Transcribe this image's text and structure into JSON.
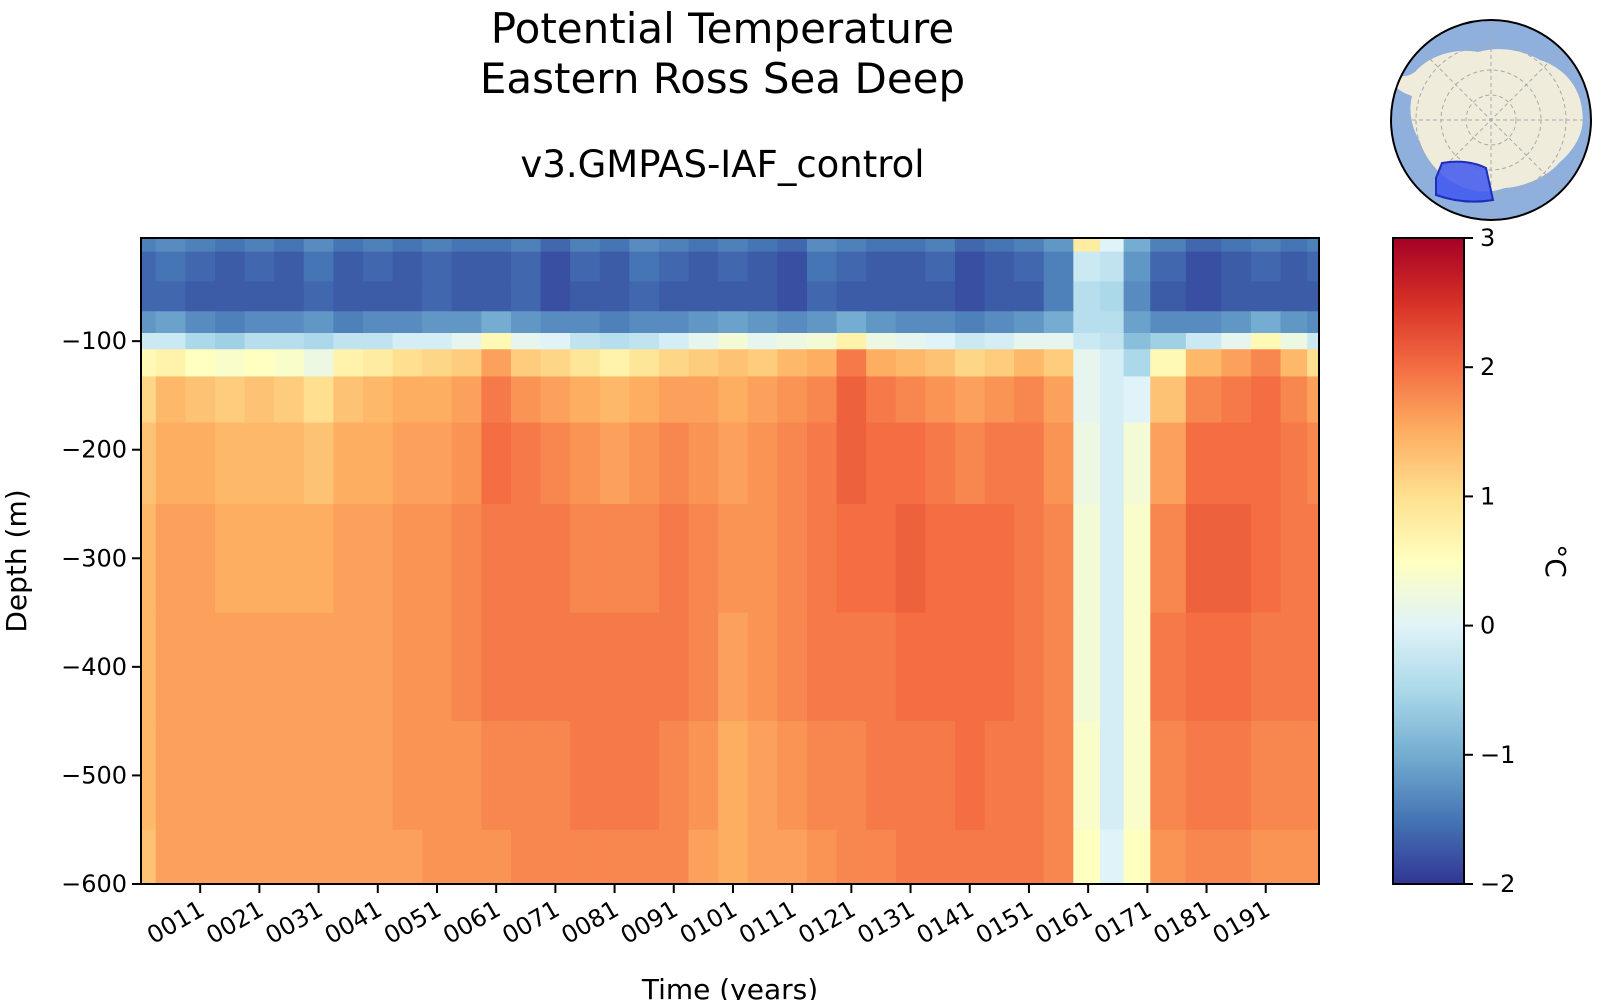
{
  "title": "Potential Temperature",
  "region": "Eastern Ross Sea Deep",
  "subtitle": "v3.GMPAS-IAF_control",
  "chart_data": {
    "type": "heatmap",
    "xlabel": "Time (years)",
    "ylabel": "Depth (m)",
    "colorbar_label": "°C",
    "colormap": "RdYlBu_r",
    "clim": [
      -2,
      3
    ],
    "xlim": [
      1,
      200
    ],
    "ylim": [
      -600,
      -5
    ],
    "x_ticks": [
      "0011",
      "0021",
      "0031",
      "0041",
      "0051",
      "0061",
      "0071",
      "0081",
      "0091",
      "0101",
      "0111",
      "0121",
      "0131",
      "0141",
      "0151",
      "0161",
      "0171",
      "0181",
      "0191"
    ],
    "y_ticks": [
      -100,
      -200,
      -300,
      -400,
      -500,
      -600
    ],
    "colorbar_ticks": [
      3,
      2,
      1,
      0,
      -1,
      -2
    ],
    "depth_levels": [
      -5,
      -30,
      -60,
      -85,
      -100,
      -115,
      -150,
      -200,
      -300,
      -400,
      -500,
      -600
    ],
    "time_years": [
      1,
      6,
      11,
      16,
      21,
      26,
      31,
      36,
      41,
      46,
      51,
      56,
      61,
      66,
      71,
      76,
      81,
      86,
      91,
      96,
      101,
      106,
      111,
      116,
      121,
      126,
      131,
      136,
      141,
      146,
      151,
      156,
      161,
      165,
      169,
      174,
      181,
      186,
      191,
      196,
      200
    ],
    "temperature": [
      [
        -1.4,
        -1.3,
        -1.4,
        -1.5,
        -1.4,
        -1.5,
        -1.3,
        -1.5,
        -1.4,
        -1.5,
        -1.4,
        -1.5,
        -1.5,
        -1.4,
        -1.6,
        -1.4,
        -1.5,
        -1.3,
        -1.4,
        -1.5,
        -1.4,
        -1.5,
        -1.6,
        -1.3,
        -1.4,
        -1.5,
        -1.5,
        -1.4,
        -1.6,
        -1.5,
        -1.4,
        -1.2,
        0.8,
        0.0,
        -1.0,
        -1.4,
        -1.6,
        -1.5,
        -1.4,
        -1.5,
        -1.4
      ],
      [
        -1.6,
        -1.5,
        -1.6,
        -1.7,
        -1.6,
        -1.7,
        -1.5,
        -1.7,
        -1.6,
        -1.7,
        -1.6,
        -1.7,
        -1.7,
        -1.6,
        -1.8,
        -1.6,
        -1.7,
        -1.5,
        -1.6,
        -1.7,
        -1.6,
        -1.7,
        -1.8,
        -1.5,
        -1.6,
        -1.7,
        -1.7,
        -1.6,
        -1.8,
        -1.7,
        -1.6,
        -1.4,
        -0.2,
        -0.3,
        -1.2,
        -1.6,
        -1.8,
        -1.7,
        -1.6,
        -1.7,
        -1.6
      ],
      [
        -1.6,
        -1.6,
        -1.7,
        -1.7,
        -1.7,
        -1.7,
        -1.6,
        -1.7,
        -1.7,
        -1.7,
        -1.6,
        -1.7,
        -1.7,
        -1.6,
        -1.8,
        -1.7,
        -1.7,
        -1.6,
        -1.7,
        -1.7,
        -1.7,
        -1.7,
        -1.8,
        -1.6,
        -1.7,
        -1.7,
        -1.7,
        -1.7,
        -1.8,
        -1.7,
        -1.7,
        -1.4,
        -0.4,
        -0.5,
        -1.3,
        -1.7,
        -1.8,
        -1.7,
        -1.7,
        -1.7,
        -1.7
      ],
      [
        -1.2,
        -1.1,
        -1.3,
        -1.4,
        -1.3,
        -1.3,
        -1.2,
        -1.4,
        -1.3,
        -1.3,
        -1.2,
        -1.2,
        -1.0,
        -1.2,
        -1.3,
        -1.3,
        -1.4,
        -1.3,
        -1.3,
        -1.2,
        -1.1,
        -1.2,
        -1.3,
        -1.2,
        -1.0,
        -1.2,
        -1.3,
        -1.3,
        -1.4,
        -1.3,
        -1.2,
        -1.0,
        -0.4,
        -0.4,
        -1.1,
        -1.3,
        -1.3,
        -1.2,
        -1.0,
        -1.2,
        -1.3
      ],
      [
        -0.2,
        -0.2,
        -0.5,
        -0.6,
        -0.4,
        -0.4,
        -0.5,
        -0.3,
        -0.3,
        -0.1,
        -0.1,
        0.1,
        0.6,
        0.1,
        0.0,
        -0.3,
        -0.4,
        -0.3,
        -0.1,
        0.1,
        0.3,
        0.1,
        0.2,
        0.3,
        0.7,
        0.2,
        0.1,
        0.0,
        -0.2,
        -0.1,
        0.1,
        0.1,
        -0.2,
        -0.3,
        -0.8,
        -0.6,
        -0.2,
        0.1,
        0.6,
        0.2,
        -0.2
      ],
      [
        0.6,
        0.7,
        0.5,
        0.4,
        0.5,
        0.4,
        0.2,
        0.7,
        0.8,
        1.0,
        1.1,
        1.2,
        1.6,
        1.2,
        1.1,
        0.9,
        0.7,
        0.9,
        1.1,
        1.2,
        1.3,
        1.2,
        1.4,
        1.5,
        1.9,
        1.5,
        1.4,
        1.3,
        1.1,
        1.2,
        1.4,
        1.2,
        0.1,
        -0.1,
        -0.5,
        0.6,
        1.4,
        1.6,
        1.8,
        1.4,
        1.0
      ],
      [
        1.1,
        1.4,
        1.3,
        1.2,
        1.3,
        1.2,
        1.0,
        1.3,
        1.4,
        1.5,
        1.5,
        1.6,
        1.9,
        1.7,
        1.6,
        1.5,
        1.4,
        1.5,
        1.6,
        1.6,
        1.5,
        1.6,
        1.7,
        1.8,
        2.1,
        1.9,
        1.8,
        1.7,
        1.6,
        1.7,
        1.8,
        1.6,
        0.1,
        -0.1,
        0.0,
        1.3,
        1.8,
        1.9,
        2.0,
        1.8,
        1.6
      ],
      [
        1.3,
        1.5,
        1.5,
        1.4,
        1.4,
        1.4,
        1.3,
        1.5,
        1.5,
        1.6,
        1.6,
        1.7,
        2.0,
        1.9,
        1.8,
        1.7,
        1.6,
        1.7,
        1.8,
        1.7,
        1.6,
        1.7,
        1.8,
        1.9,
        2.1,
        2.0,
        2.0,
        1.9,
        1.8,
        1.9,
        1.9,
        1.7,
        0.2,
        -0.1,
        0.3,
        1.6,
        2.0,
        2.0,
        2.0,
        1.9,
        1.8
      ],
      [
        1.4,
        1.6,
        1.6,
        1.5,
        1.5,
        1.5,
        1.5,
        1.6,
        1.6,
        1.7,
        1.7,
        1.8,
        1.9,
        1.9,
        1.9,
        1.8,
        1.8,
        1.8,
        1.9,
        1.8,
        1.7,
        1.7,
        1.8,
        1.9,
        2.0,
        2.0,
        2.1,
        2.0,
        2.0,
        2.0,
        1.9,
        1.8,
        0.3,
        -0.1,
        0.4,
        1.8,
        2.1,
        2.1,
        2.0,
        1.9,
        1.9
      ],
      [
        1.4,
        1.6,
        1.6,
        1.6,
        1.6,
        1.6,
        1.6,
        1.6,
        1.6,
        1.7,
        1.7,
        1.8,
        1.9,
        1.9,
        1.9,
        1.9,
        1.9,
        1.9,
        1.9,
        1.8,
        1.6,
        1.7,
        1.8,
        1.9,
        1.9,
        1.9,
        2.0,
        2.0,
        2.0,
        2.0,
        1.9,
        1.8,
        0.3,
        -0.1,
        0.4,
        1.9,
        2.0,
        2.0,
        1.9,
        1.9,
        1.9
      ],
      [
        1.4,
        1.6,
        1.6,
        1.6,
        1.6,
        1.6,
        1.6,
        1.6,
        1.6,
        1.7,
        1.7,
        1.7,
        1.8,
        1.8,
        1.8,
        1.9,
        1.9,
        1.9,
        1.8,
        1.7,
        1.5,
        1.6,
        1.7,
        1.8,
        1.8,
        1.9,
        1.9,
        1.9,
        2.0,
        1.9,
        1.9,
        1.8,
        0.4,
        -0.1,
        0.4,
        1.8,
        1.9,
        1.9,
        1.8,
        1.8,
        1.8
      ],
      [
        1.3,
        1.6,
        1.6,
        1.6,
        1.6,
        1.6,
        1.6,
        1.6,
        1.6,
        1.6,
        1.7,
        1.7,
        1.7,
        1.8,
        1.8,
        1.8,
        1.8,
        1.8,
        1.8,
        1.6,
        1.5,
        1.6,
        1.6,
        1.7,
        1.8,
        1.8,
        1.9,
        1.9,
        1.9,
        1.9,
        1.9,
        1.8,
        0.5,
        0.0,
        0.5,
        1.7,
        1.8,
        1.8,
        1.7,
        1.7,
        1.7
      ]
    ]
  },
  "inset": {
    "land_color": "#efecdb",
    "ocean_color": "#8fb0dd",
    "region_color": "#3f57f0"
  }
}
